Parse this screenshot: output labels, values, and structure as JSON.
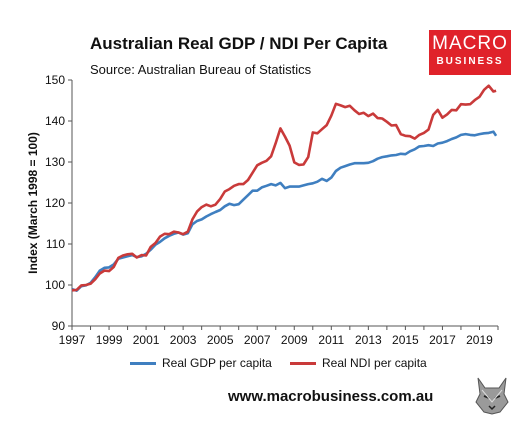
{
  "title": "Australian Real GDP / NDI Per Capita",
  "subtitle": "Source: Australian Bureau of Statistics",
  "logo": {
    "line1": "MACRO",
    "line2": "BUSINESS",
    "color": "#e0222a",
    "icon": "wolf-icon"
  },
  "footer": "www.macrobusiness.com.au",
  "chart_data": {
    "type": "line",
    "title": "Australian Real GDP / NDI Per Capita",
    "ylabel": "Index (March 1998 = 100)",
    "xlabel": "",
    "xlim": [
      1997,
      2020
    ],
    "ylim": [
      90,
      150
    ],
    "xticks": [
      1997,
      1999,
      2001,
      2003,
      2005,
      2007,
      2009,
      2011,
      2013,
      2015,
      2017,
      2019
    ],
    "yticks": [
      90,
      100,
      110,
      120,
      130,
      140,
      150
    ],
    "grid": false,
    "legend": "bottom",
    "series": [
      {
        "name": "Real GDP per capita",
        "color": "#3f7fc0",
        "points": [
          [
            1997.0,
            99.0
          ],
          [
            1997.25,
            98.6
          ],
          [
            1997.5,
            99.7
          ],
          [
            1997.75,
            99.9
          ],
          [
            1998.0,
            100.5
          ],
          [
            1998.25,
            101.9
          ],
          [
            1998.5,
            103.5
          ],
          [
            1998.75,
            104.2
          ],
          [
            1999.0,
            104.3
          ],
          [
            1999.25,
            105.0
          ],
          [
            1999.5,
            106.4
          ],
          [
            1999.75,
            106.7
          ],
          [
            2000.0,
            107.0
          ],
          [
            2000.25,
            107.3
          ],
          [
            2000.5,
            106.8
          ],
          [
            2000.75,
            107.0
          ],
          [
            2001.0,
            107.6
          ],
          [
            2001.25,
            108.6
          ],
          [
            2001.5,
            109.8
          ],
          [
            2001.75,
            110.5
          ],
          [
            2002.0,
            111.4
          ],
          [
            2002.25,
            112.0
          ],
          [
            2002.5,
            112.5
          ],
          [
            2002.75,
            112.8
          ],
          [
            2003.0,
            112.3
          ],
          [
            2003.25,
            112.6
          ],
          [
            2003.5,
            114.8
          ],
          [
            2003.75,
            115.6
          ],
          [
            2004.0,
            116.0
          ],
          [
            2004.25,
            116.7
          ],
          [
            2004.5,
            117.3
          ],
          [
            2004.75,
            117.8
          ],
          [
            2005.0,
            118.3
          ],
          [
            2005.25,
            119.2
          ],
          [
            2005.5,
            119.8
          ],
          [
            2005.75,
            119.5
          ],
          [
            2006.0,
            119.7
          ],
          [
            2006.25,
            120.8
          ],
          [
            2006.5,
            121.9
          ],
          [
            2006.75,
            123.0
          ],
          [
            2007.0,
            123.0
          ],
          [
            2007.25,
            123.8
          ],
          [
            2007.5,
            124.2
          ],
          [
            2007.75,
            124.6
          ],
          [
            2008.0,
            124.3
          ],
          [
            2008.25,
            124.9
          ],
          [
            2008.5,
            123.6
          ],
          [
            2008.75,
            124.0
          ],
          [
            2009.0,
            124.0
          ],
          [
            2009.25,
            124.0
          ],
          [
            2009.5,
            124.3
          ],
          [
            2009.75,
            124.6
          ],
          [
            2010.0,
            124.8
          ],
          [
            2010.25,
            125.2
          ],
          [
            2010.5,
            125.9
          ],
          [
            2010.75,
            125.4
          ],
          [
            2011.0,
            126.2
          ],
          [
            2011.25,
            127.8
          ],
          [
            2011.5,
            128.6
          ],
          [
            2011.75,
            129.0
          ],
          [
            2012.0,
            129.4
          ],
          [
            2012.25,
            129.7
          ],
          [
            2012.5,
            129.7
          ],
          [
            2012.75,
            129.7
          ],
          [
            2013.0,
            129.8
          ],
          [
            2013.25,
            130.2
          ],
          [
            2013.5,
            130.8
          ],
          [
            2013.75,
            131.2
          ],
          [
            2014.0,
            131.4
          ],
          [
            2014.25,
            131.6
          ],
          [
            2014.5,
            131.7
          ],
          [
            2014.75,
            132.0
          ],
          [
            2015.0,
            131.9
          ],
          [
            2015.25,
            132.6
          ],
          [
            2015.5,
            133.1
          ],
          [
            2015.75,
            133.8
          ],
          [
            2016.0,
            133.9
          ],
          [
            2016.25,
            134.1
          ],
          [
            2016.5,
            133.9
          ],
          [
            2016.75,
            134.5
          ],
          [
            2017.0,
            134.7
          ],
          [
            2017.25,
            135.1
          ],
          [
            2017.5,
            135.6
          ],
          [
            2017.75,
            136.0
          ],
          [
            2018.0,
            136.6
          ],
          [
            2018.25,
            136.8
          ],
          [
            2018.5,
            136.6
          ],
          [
            2018.75,
            136.5
          ],
          [
            2019.0,
            136.8
          ],
          [
            2019.25,
            137.0
          ],
          [
            2019.5,
            137.1
          ],
          [
            2019.75,
            137.4
          ],
          [
            2019.9,
            136.4
          ]
        ]
      },
      {
        "name": "Real NDI per capita",
        "color": "#c93a3a",
        "points": [
          [
            1997.0,
            98.7
          ],
          [
            1997.25,
            98.8
          ],
          [
            1997.5,
            99.9
          ],
          [
            1997.75,
            100.0
          ],
          [
            1998.0,
            100.3
          ],
          [
            1998.25,
            101.4
          ],
          [
            1998.5,
            102.8
          ],
          [
            1998.75,
            103.5
          ],
          [
            1999.0,
            103.4
          ],
          [
            1999.25,
            104.4
          ],
          [
            1999.5,
            106.6
          ],
          [
            1999.75,
            107.2
          ],
          [
            2000.0,
            107.5
          ],
          [
            2000.25,
            107.6
          ],
          [
            2000.5,
            106.7
          ],
          [
            2000.75,
            107.3
          ],
          [
            2001.0,
            107.2
          ],
          [
            2001.25,
            109.3
          ],
          [
            2001.5,
            110.2
          ],
          [
            2001.75,
            111.8
          ],
          [
            2002.0,
            112.5
          ],
          [
            2002.25,
            112.4
          ],
          [
            2002.5,
            113.0
          ],
          [
            2002.75,
            112.8
          ],
          [
            2003.0,
            112.4
          ],
          [
            2003.25,
            113.0
          ],
          [
            2003.5,
            116.0
          ],
          [
            2003.75,
            117.9
          ],
          [
            2004.0,
            119.0
          ],
          [
            2004.25,
            119.6
          ],
          [
            2004.5,
            119.2
          ],
          [
            2004.75,
            119.6
          ],
          [
            2005.0,
            121.0
          ],
          [
            2005.25,
            122.8
          ],
          [
            2005.5,
            123.4
          ],
          [
            2005.75,
            124.2
          ],
          [
            2006.0,
            124.6
          ],
          [
            2006.25,
            124.6
          ],
          [
            2006.5,
            125.6
          ],
          [
            2006.75,
            127.4
          ],
          [
            2007.0,
            129.2
          ],
          [
            2007.25,
            129.8
          ],
          [
            2007.5,
            130.3
          ],
          [
            2007.75,
            131.4
          ],
          [
            2008.0,
            134.6
          ],
          [
            2008.25,
            138.2
          ],
          [
            2008.5,
            136.2
          ],
          [
            2008.75,
            134.0
          ],
          [
            2009.0,
            129.9
          ],
          [
            2009.25,
            129.3
          ],
          [
            2009.5,
            129.4
          ],
          [
            2009.75,
            131.2
          ],
          [
            2010.0,
            137.2
          ],
          [
            2010.25,
            137.0
          ],
          [
            2010.5,
            138.0
          ],
          [
            2010.75,
            139.0
          ],
          [
            2011.0,
            141.3
          ],
          [
            2011.25,
            144.2
          ],
          [
            2011.5,
            143.8
          ],
          [
            2011.75,
            143.4
          ],
          [
            2012.0,
            143.7
          ],
          [
            2012.25,
            142.6
          ],
          [
            2012.5,
            141.7
          ],
          [
            2012.75,
            142.0
          ],
          [
            2013.0,
            141.2
          ],
          [
            2013.25,
            141.8
          ],
          [
            2013.5,
            140.7
          ],
          [
            2013.75,
            140.6
          ],
          [
            2014.0,
            139.8
          ],
          [
            2014.25,
            138.9
          ],
          [
            2014.5,
            139.0
          ],
          [
            2014.75,
            136.8
          ],
          [
            2015.0,
            136.4
          ],
          [
            2015.25,
            136.3
          ],
          [
            2015.5,
            135.7
          ],
          [
            2015.75,
            136.6
          ],
          [
            2016.0,
            137.1
          ],
          [
            2016.25,
            137.9
          ],
          [
            2016.5,
            141.5
          ],
          [
            2016.75,
            142.7
          ],
          [
            2017.0,
            140.8
          ],
          [
            2017.25,
            141.6
          ],
          [
            2017.5,
            142.7
          ],
          [
            2017.75,
            142.6
          ],
          [
            2018.0,
            144.1
          ],
          [
            2018.25,
            144.0
          ],
          [
            2018.5,
            144.1
          ],
          [
            2018.75,
            145.1
          ],
          [
            2019.0,
            145.9
          ],
          [
            2019.25,
            147.6
          ],
          [
            2019.5,
            148.6
          ],
          [
            2019.75,
            147.2
          ],
          [
            2019.9,
            147.4
          ]
        ]
      }
    ]
  }
}
